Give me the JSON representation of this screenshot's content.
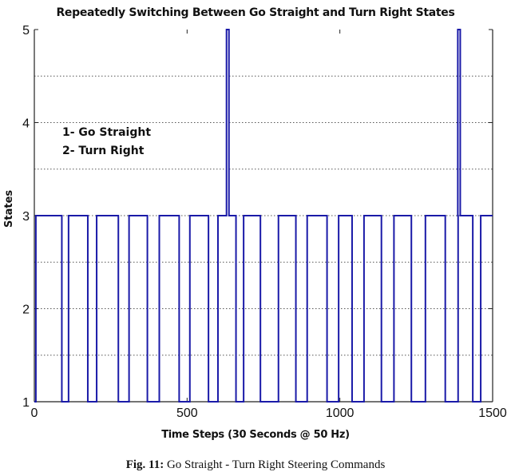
{
  "chart_data": {
    "type": "line",
    "title": "Repeatedly Switching Between Go Straight and Turn Right States",
    "xlabel": "Time Steps (30 Seconds @ 50 Hz)",
    "ylabel": "States",
    "xlim": [
      0,
      1500
    ],
    "ylim": [
      1,
      5
    ],
    "xticks": [
      0,
      500,
      1000,
      1500
    ],
    "yticks": [
      1,
      2,
      3,
      4,
      5
    ],
    "grid": "dotted, y at 0.5 intervals",
    "legend_annotation": [
      "1- Go Straight",
      "2- Turn Right"
    ],
    "series": [
      {
        "name": "State",
        "color": "#1a1aa8",
        "description": "Square wave alternating between state 3 (high) and state 1 (low), with brief spikes to state 5 at ~t=633 and ~t=1390",
        "high_intervals": [
          [
            5,
            90
          ],
          [
            112,
            175
          ],
          [
            204,
            275
          ],
          [
            310,
            370
          ],
          [
            409,
            474
          ],
          [
            509,
            570
          ],
          [
            601,
            660
          ],
          [
            685,
            740
          ],
          [
            799,
            856
          ],
          [
            893,
            958
          ],
          [
            996,
            1040
          ],
          [
            1079,
            1136
          ],
          [
            1177,
            1234
          ],
          [
            1280,
            1345
          ],
          [
            1387,
            1435
          ],
          [
            1461,
            1500
          ]
        ],
        "spikes_to_5": [
          633,
          1390
        ]
      }
    ]
  },
  "title": "Repeatedly Switching Between Go Straight and Turn Right States",
  "axes": {
    "xlabel": "Time Steps (30 Seconds @ 50 Hz)",
    "ylabel": "States",
    "xtick_labels": [
      "0",
      "500",
      "1000",
      "1500"
    ],
    "ytick_labels": [
      "1",
      "2",
      "3",
      "4",
      "5"
    ]
  },
  "legend": {
    "line1": "1- Go Straight",
    "line2": "2- Turn Right"
  },
  "caption": {
    "label": "Fig. 11:",
    "text": " Go Straight - Turn Right Steering Commands"
  }
}
